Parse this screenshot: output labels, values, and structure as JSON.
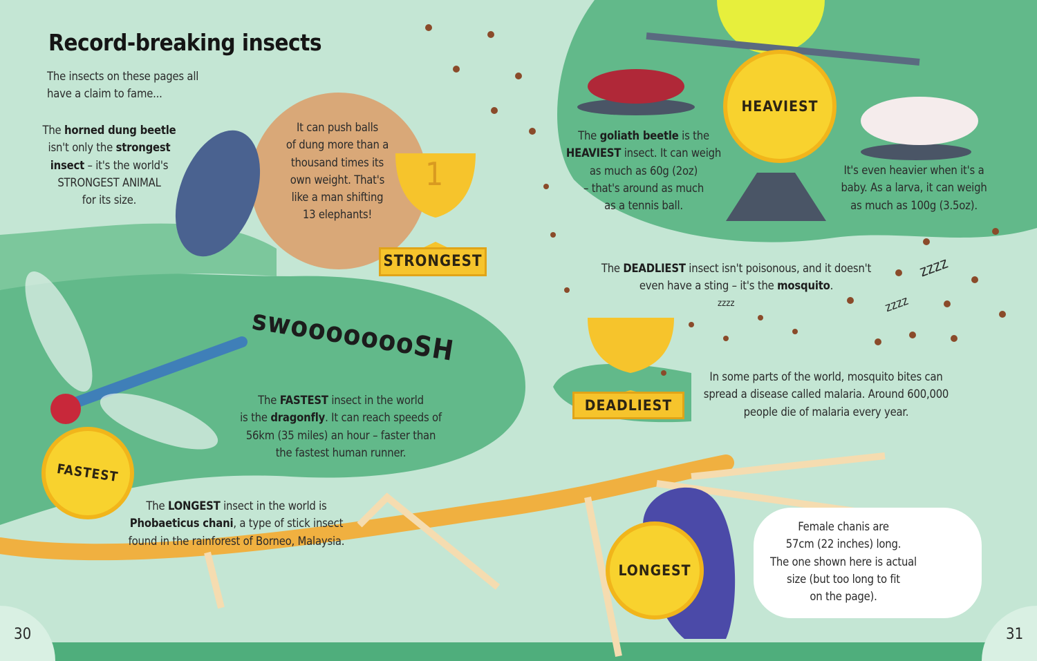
{
  "title": "Record-breaking insects",
  "intro": [
    [
      {
        "t": "The insects on these pages all"
      }
    ],
    [
      {
        "t": "have a claim to fame..."
      }
    ]
  ],
  "dung_beetle": [
    [
      {
        "t": "The "
      },
      {
        "t": "horned dung beetle",
        "b": true
      }
    ],
    [
      {
        "t": "isn't only the "
      },
      {
        "t": "strongest",
        "b": true
      }
    ],
    [
      {
        "t": "insect",
        "b": true
      },
      {
        "t": " – it's the world's"
      }
    ],
    [
      {
        "t": "STRONGEST ANIMAL"
      }
    ],
    [
      {
        "t": "for its size."
      }
    ]
  ],
  "dung_ball": [
    [
      {
        "t": "It can push balls"
      }
    ],
    [
      {
        "t": "of dung more than a"
      }
    ],
    [
      {
        "t": "thousand times its"
      }
    ],
    [
      {
        "t": "own weight. That's"
      }
    ],
    [
      {
        "t": "like a man shifting"
      }
    ],
    [
      {
        "t": "13 elephants!"
      }
    ]
  ],
  "strongest": {
    "label": "STRONGEST",
    "trophy_number": "1"
  },
  "heaviest": {
    "label": "HEAVIEST"
  },
  "goliath": [
    [
      {
        "t": "The "
      },
      {
        "t": "goliath beetle",
        "b": true
      },
      {
        "t": " is the"
      }
    ],
    [
      {
        "t": "HEAVIEST",
        "b": true
      },
      {
        "t": " insect. It can weigh"
      }
    ],
    [
      {
        "t": "as much as 60g (2oz)"
      }
    ],
    [
      {
        "t": "– that's around as much"
      }
    ],
    [
      {
        "t": "as a tennis ball."
      }
    ]
  ],
  "larva": [
    [
      {
        "t": "It's even heavier when it's a"
      }
    ],
    [
      {
        "t": "baby. As a larva, it can weigh"
      }
    ],
    [
      {
        "t": "as much as 100g (3.5oz)."
      }
    ]
  ],
  "deadliest_intro": [
    [
      {
        "t": "The "
      },
      {
        "t": "DEADLIEST",
        "b": true
      },
      {
        "t": " insect isn't poisonous, and it doesn't"
      }
    ],
    [
      {
        "t": "even have a sting – it's the "
      },
      {
        "t": "mosquito",
        "b": true
      },
      {
        "t": "."
      }
    ]
  ],
  "deadliest": {
    "label": "DEADLIEST",
    "snore_1": "zzzz",
    "snore_2": "zzzz",
    "snore_3": "zzzz"
  },
  "malaria": [
    [
      {
        "t": "In some parts of the world, mosquito bites can"
      }
    ],
    [
      {
        "t": "spread a disease called malaria. Around 600,000"
      }
    ],
    [
      {
        "t": "people die of malaria every year."
      }
    ]
  ],
  "swoosh": "swoooooooSH",
  "fastest_text": [
    [
      {
        "t": "The "
      },
      {
        "t": "FASTEST",
        "b": true
      },
      {
        "t": " insect in the world"
      }
    ],
    [
      {
        "t": "is the "
      },
      {
        "t": "dragonfly",
        "b": true
      },
      {
        "t": ". It can reach speeds of"
      }
    ],
    [
      {
        "t": "56km (35 miles) an hour – faster than"
      }
    ],
    [
      {
        "t": "the fastest human runner."
      }
    ]
  ],
  "fastest": {
    "label": "FASTEST"
  },
  "longest_text": [
    [
      {
        "t": "The "
      },
      {
        "t": "LONGEST",
        "b": true
      },
      {
        "t": " insect in the world is"
      }
    ],
    [
      {
        "t": "Phobaeticus chani",
        "b": true
      },
      {
        "t": ", a type of stick insect"
      }
    ],
    [
      {
        "t": "found in the rainforest of Borneo, Malaysia."
      }
    ]
  ],
  "longest": {
    "label": "LONGEST"
  },
  "speech_bubble": [
    [
      {
        "t": "Female chanis are"
      }
    ],
    [
      {
        "t": "57cm (22 inches) long."
      }
    ],
    [
      {
        "t": "The one shown here is actual"
      }
    ],
    [
      {
        "t": "size (but too long to fit"
      }
    ],
    [
      {
        "t": "on the page)."
      }
    ]
  ],
  "page_numbers": {
    "left": "30",
    "right": "31"
  },
  "colors": {
    "light_green": "#c4e6d4",
    "dark_green": "#62b98a",
    "gold": "#f8d22e",
    "dung": "#d9a878",
    "stick_insect": "#f0b040"
  }
}
